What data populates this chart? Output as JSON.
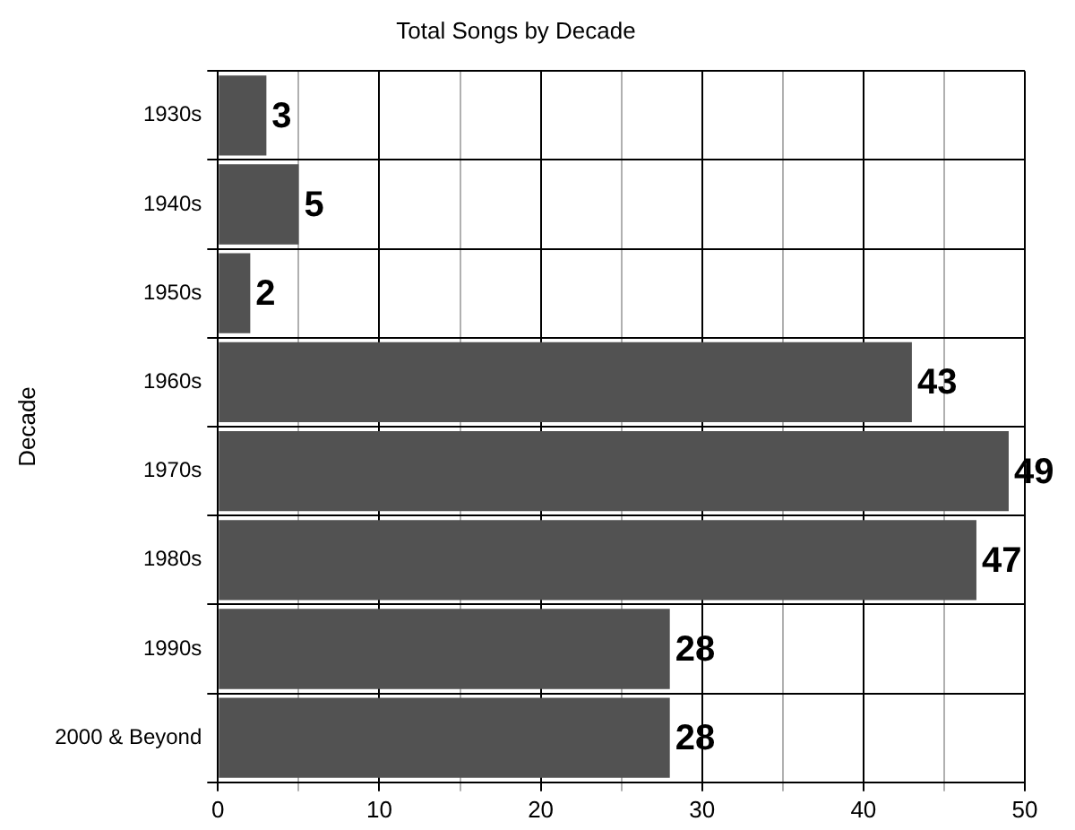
{
  "chart_data": {
    "type": "bar",
    "orientation": "horizontal",
    "title": "Total Songs by Decade",
    "ylabel": "Decade",
    "categories": [
      "1930s",
      "1940s",
      "1950s",
      "1960s",
      "1970s",
      "1980s",
      "1990s",
      "2000 & Beyond"
    ],
    "values": [
      3,
      5,
      2,
      43,
      49,
      47,
      28,
      28
    ],
    "color": "#525252",
    "xlim": [
      0,
      50
    ],
    "xticks": [
      0,
      {
        "value": 5,
        "label": null
      },
      10,
      {
        "value": 15,
        "label": null
      },
      20,
      {
        "value": 25,
        "label": null
      },
      30,
      {
        "value": 35,
        "label": null
      },
      40,
      {
        "value": 45,
        "label": null
      },
      50
    ],
    "grid": true,
    "data_labels": true
  }
}
